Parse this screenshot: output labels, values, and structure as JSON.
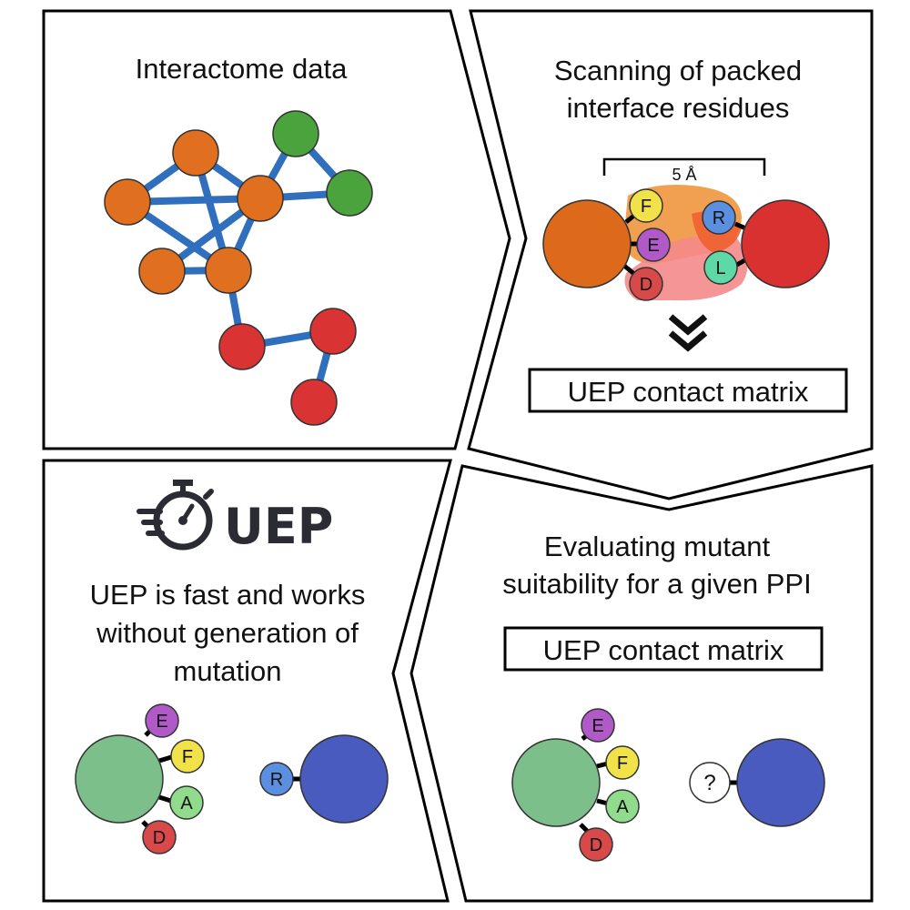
{
  "panels": {
    "interactome": {
      "title": "Interactome data",
      "network": {
        "nodes": [
          {
            "id": "o1",
            "color": "#e07020"
          },
          {
            "id": "o2",
            "color": "#e07020"
          },
          {
            "id": "o3",
            "color": "#e07020"
          },
          {
            "id": "o4",
            "color": "#e07020"
          },
          {
            "id": "o5",
            "color": "#e07020"
          },
          {
            "id": "g1",
            "color": "#4aa33c"
          },
          {
            "id": "g2",
            "color": "#4aa33c"
          },
          {
            "id": "r1",
            "color": "#d93333"
          },
          {
            "id": "r2",
            "color": "#d93333"
          },
          {
            "id": "r3",
            "color": "#d93333"
          }
        ],
        "edges": [
          [
            "o1",
            "o2"
          ],
          [
            "o1",
            "o3"
          ],
          [
            "o1",
            "o5"
          ],
          [
            "o2",
            "o3"
          ],
          [
            "o2",
            "o5"
          ],
          [
            "o3",
            "o4"
          ],
          [
            "o3",
            "o5"
          ],
          [
            "o4",
            "o5"
          ],
          [
            "o3",
            "g1"
          ],
          [
            "o3",
            "g2"
          ],
          [
            "g1",
            "g2"
          ],
          [
            "o5",
            "r1"
          ],
          [
            "r1",
            "r2"
          ],
          [
            "r2",
            "r3"
          ]
        ],
        "edge_color": "#2f6fbe"
      }
    },
    "scanning": {
      "title_line1": "Scanning of packed",
      "title_line2": "interface residues",
      "distance_label": "5 Å",
      "residues_left": [
        "F",
        "E",
        "D"
      ],
      "residues_right": [
        "R",
        "L"
      ],
      "matrix_label": "UEP contact matrix",
      "colors": {
        "left_protein": "#e07020",
        "right_protein": "#d93333"
      }
    },
    "uep": {
      "brand": "UEP",
      "text_line1": "UEP is fast and works",
      "text_line2": "without generation of",
      "text_line3": "mutation",
      "residues_left": [
        "E",
        "F",
        "A",
        "D"
      ],
      "residue_right": "R",
      "colors": {
        "left_protein": "#7dbf8a",
        "right_protein": "#4a5bbf"
      }
    },
    "evaluating": {
      "title_line1": "Evaluating mutant",
      "title_line2": "suitability for a given PPI",
      "matrix_label": "UEP contact matrix",
      "residues_left": [
        "E",
        "F",
        "A",
        "D"
      ],
      "unknown_residue": "?",
      "colors": {
        "left_protein": "#7dbf8a",
        "right_protein": "#4a5bbf"
      }
    }
  }
}
